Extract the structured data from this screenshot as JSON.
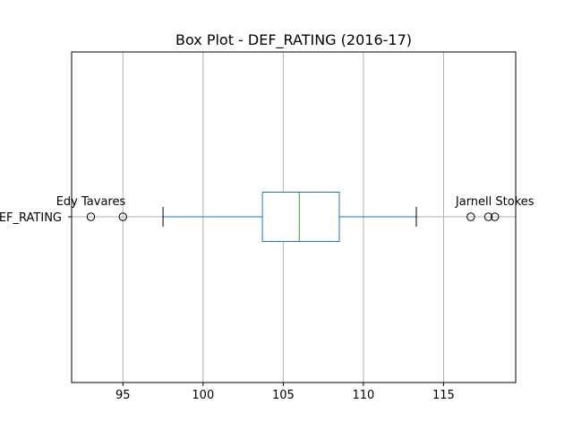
{
  "chart_data": {
    "type": "boxplot",
    "title": "Box Plot - DEF_RATING (2016-17)",
    "orientation": "horizontal",
    "category_label": "DEF_RATING",
    "xlim": [
      91.8,
      119.5
    ],
    "xticks": [
      95,
      100,
      105,
      110,
      115
    ],
    "grid": true,
    "box": {
      "whisker_low": 97.5,
      "q1": 103.7,
      "median": 106.0,
      "q3": 108.5,
      "whisker_high": 113.3
    },
    "outliers": [
      93.0,
      95.0,
      116.7,
      117.8,
      118.2
    ],
    "annotations": [
      {
        "text": "Edy Tavares",
        "x": 93.0
      },
      {
        "text": "Jarnell Stokes",
        "x": 118.2
      }
    ],
    "colors": {
      "box": "#1f77b4",
      "median": "#2ca02c",
      "whisker_cap": "#000000",
      "grid": "#b0b0b0"
    }
  }
}
